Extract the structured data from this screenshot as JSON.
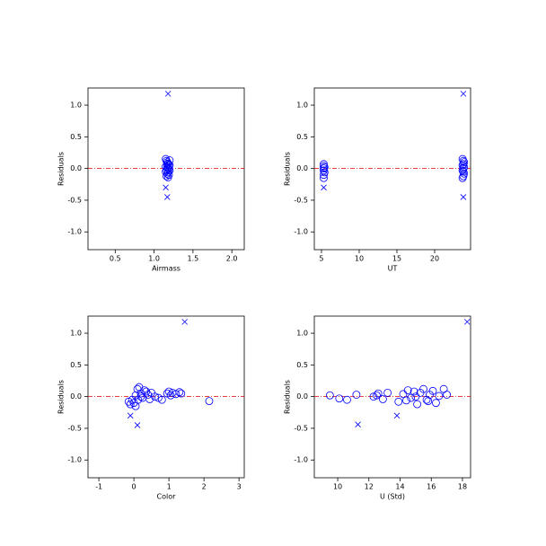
{
  "chart_data": [
    {
      "type": "scatter",
      "xlabel": "Airmass",
      "ylabel": "Residuals",
      "xlim": [
        0.15,
        2.16
      ],
      "ylim": [
        -1.28,
        1.27
      ],
      "xticks": [
        0.5,
        {
          "value": 1,
          "label": "1.0"
        },
        1.5,
        {
          "value": 2,
          "label": "2.0"
        }
      ],
      "yticks": [
        {
          "value": -1,
          "label": "-1.0"
        },
        -0.5,
        {
          "value": 0,
          "label": "0.0"
        },
        0.5,
        {
          "value": 1,
          "label": "1.0"
        }
      ],
      "hline": 0,
      "hline_color": "#dd0000",
      "series": [
        {
          "marker": "circle",
          "color": "#0000ff",
          "x": [
            1.15,
            1.16,
            1.17,
            1.18,
            1.19,
            1.2,
            1.15,
            1.17,
            1.18,
            1.19,
            1.16,
            1.2,
            1.15,
            1.18,
            1.17,
            1.19,
            1.16,
            1.2,
            1.18,
            1.17
          ],
          "values": [
            0.15,
            0.12,
            0.1,
            0.08,
            0.06,
            0.05,
            0.03,
            0.02,
            0.0,
            -0.01,
            -0.02,
            -0.03,
            -0.05,
            -0.06,
            -0.08,
            -0.1,
            -0.12,
            0.13,
            -0.14,
            0.07
          ]
        },
        {
          "marker": "x",
          "color": "#0000ff",
          "x": [
            1.18,
            1.15,
            1.17
          ],
          "values": [
            1.18,
            -0.3,
            -0.45
          ]
        }
      ]
    },
    {
      "type": "scatter",
      "xlabel": "UT",
      "ylabel": "Residuals",
      "xlim": [
        4.05,
        24.76
      ],
      "ylim": [
        -1.28,
        1.27
      ],
      "xticks": [
        5,
        10,
        15,
        20
      ],
      "yticks": [
        {
          "value": -1,
          "label": "-1.0"
        },
        -0.5,
        {
          "value": 0,
          "label": "0.0"
        },
        0.5,
        {
          "value": 1,
          "label": "1.0"
        }
      ],
      "hline": 0,
      "hline_color": "#dd0000",
      "series": [
        {
          "marker": "circle",
          "color": "#0000ff",
          "x": [
            5.3,
            5.3,
            5.4,
            5.3,
            5.3,
            5.4,
            5.3,
            5.3,
            23.7,
            23.8,
            23.9,
            23.8,
            23.7,
            23.9,
            23.8,
            23.7,
            23.8,
            23.9,
            23.8,
            23.7
          ],
          "values": [
            0.07,
            0.04,
            0.02,
            0.0,
            -0.03,
            -0.06,
            -0.1,
            -0.15,
            0.15,
            0.12,
            0.1,
            0.07,
            0.05,
            0.02,
            0.0,
            -0.03,
            -0.05,
            -0.08,
            -0.12,
            -0.15
          ]
        },
        {
          "marker": "x",
          "color": "#0000ff",
          "x": [
            23.8,
            5.3,
            23.8
          ],
          "values": [
            1.18,
            -0.3,
            -0.45
          ]
        }
      ]
    },
    {
      "type": "scatter",
      "xlabel": "Color",
      "ylabel": "Residuals",
      "xlim": [
        -1.31,
        3.15
      ],
      "ylim": [
        -1.28,
        1.27
      ],
      "xticks": [
        -1,
        0,
        1,
        2,
        3
      ],
      "yticks": [
        {
          "value": -1,
          "label": "-1.0"
        },
        -0.5,
        {
          "value": 0,
          "label": "0.0"
        },
        0.5,
        {
          "value": 1,
          "label": "1.0"
        }
      ],
      "hline": 0,
      "hline_color": "#dd0000",
      "series": [
        {
          "marker": "circle",
          "color": "#0000ff",
          "x": [
            -0.15,
            -0.05,
            0.0,
            0.05,
            0.1,
            0.12,
            0.15,
            0.2,
            0.25,
            0.3,
            0.35,
            0.4,
            0.45,
            0.5,
            0.6,
            0.7,
            0.8,
            0.95,
            1.0,
            1.05,
            1.1,
            1.2,
            1.3,
            1.35,
            2.15,
            -0.1,
            0.05,
            0.2
          ],
          "values": [
            -0.08,
            -0.05,
            -0.1,
            0.02,
            0.12,
            -0.05,
            0.15,
            0.05,
            -0.02,
            0.1,
            0.08,
            0.03,
            -0.04,
            0.06,
            0.0,
            -0.02,
            -0.05,
            0.05,
            0.08,
            0.02,
            0.06,
            0.04,
            0.07,
            0.05,
            -0.07,
            -0.12,
            -0.15,
            0.0
          ]
        },
        {
          "marker": "x",
          "color": "#0000ff",
          "x": [
            1.45,
            -0.1,
            0.1
          ],
          "values": [
            1.18,
            -0.3,
            -0.45
          ]
        }
      ]
    },
    {
      "type": "scatter",
      "xlabel": "U (Std)",
      "ylabel": "Residuals",
      "xlim": [
        8.5,
        18.52
      ],
      "ylim": [
        -1.28,
        1.27
      ],
      "xticks": [
        10,
        12,
        14,
        16,
        18
      ],
      "yticks": [
        {
          "value": -1,
          "label": "-1.0"
        },
        -0.5,
        {
          "value": 0,
          "label": "0.0"
        },
        0.5,
        {
          "value": 1,
          "label": "1.0"
        }
      ],
      "hline": 0,
      "hline_color": "#dd0000",
      "series": [
        {
          "marker": "circle",
          "color": "#0000ff",
          "x": [
            9.5,
            10.1,
            10.6,
            11.2,
            12.3,
            12.6,
            12.9,
            13.2,
            13.9,
            14.2,
            14.5,
            14.7,
            14.9,
            15.1,
            15.3,
            15.5,
            15.7,
            15.9,
            16.1,
            16.3,
            16.5,
            16.8,
            17.0,
            14.4,
            15.0,
            15.8,
            12.5
          ],
          "values": [
            0.02,
            -0.03,
            -0.05,
            0.03,
            0.0,
            0.05,
            -0.04,
            0.06,
            -0.08,
            0.04,
            0.1,
            -0.02,
            0.08,
            -0.12,
            0.06,
            0.12,
            -0.05,
            0.03,
            0.09,
            -0.1,
            0.01,
            0.12,
            0.03,
            -0.06,
            0.0,
            -0.07,
            0.02
          ]
        },
        {
          "marker": "x",
          "color": "#0000ff",
          "x": [
            18.3,
            11.3,
            13.8
          ],
          "values": [
            1.18,
            -0.44,
            -0.3
          ]
        }
      ]
    }
  ]
}
